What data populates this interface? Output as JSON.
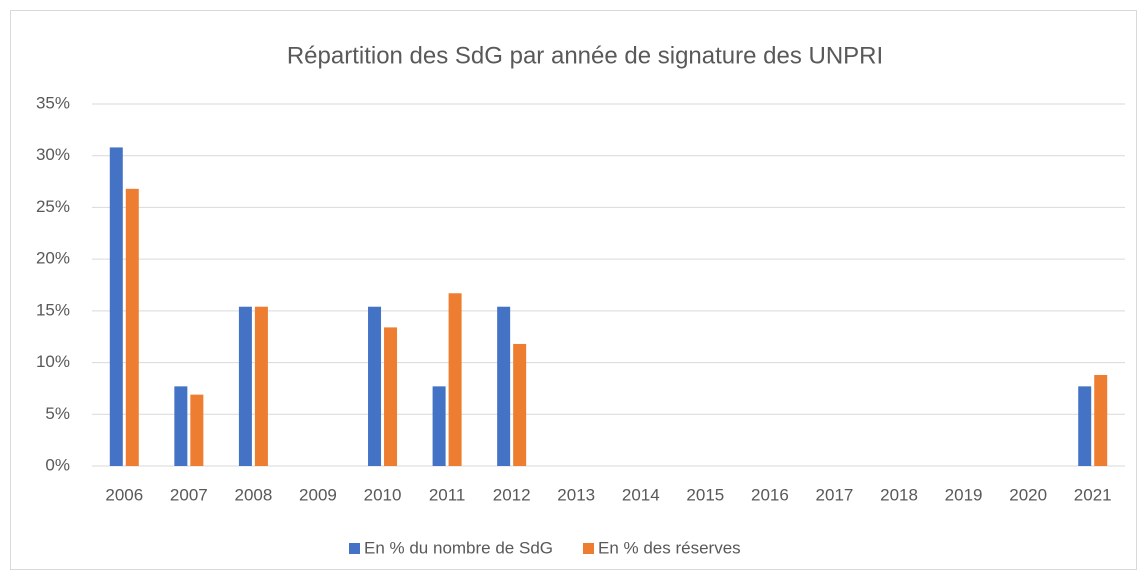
{
  "chart_data": {
    "type": "bar",
    "title": "Répartition des SdG par année de signature des UNPRI",
    "categories": [
      "2006",
      "2007",
      "2008",
      "2009",
      "2010",
      "2011",
      "2012",
      "2013",
      "2014",
      "2015",
      "2016",
      "2017",
      "2018",
      "2019",
      "2020",
      "2021"
    ],
    "series": [
      {
        "name": "En % du nombre de SdG",
        "color": "#4472c4",
        "values": [
          30.8,
          7.7,
          15.4,
          0,
          15.4,
          7.7,
          15.4,
          0,
          0,
          0,
          0,
          0,
          0,
          0,
          0,
          7.7
        ]
      },
      {
        "name": "En % des réserves",
        "color": "#ed7d31",
        "values": [
          26.8,
          6.9,
          15.4,
          0,
          13.4,
          16.7,
          11.8,
          0,
          0,
          0,
          0,
          0,
          0,
          0,
          0,
          8.8
        ]
      }
    ],
    "ylim": [
      0,
      35
    ],
    "yticks": [
      {
        "value": 0,
        "label": "0%"
      },
      {
        "value": 5,
        "label": "5%"
      },
      {
        "value": 10,
        "label": "10%"
      },
      {
        "value": 15,
        "label": "15%"
      },
      {
        "value": 20,
        "label": "20%"
      },
      {
        "value": 25,
        "label": "25%"
      },
      {
        "value": 30,
        "label": "30%"
      },
      {
        "value": 35,
        "label": "35%"
      }
    ],
    "grid": true,
    "legend": "bottom"
  }
}
